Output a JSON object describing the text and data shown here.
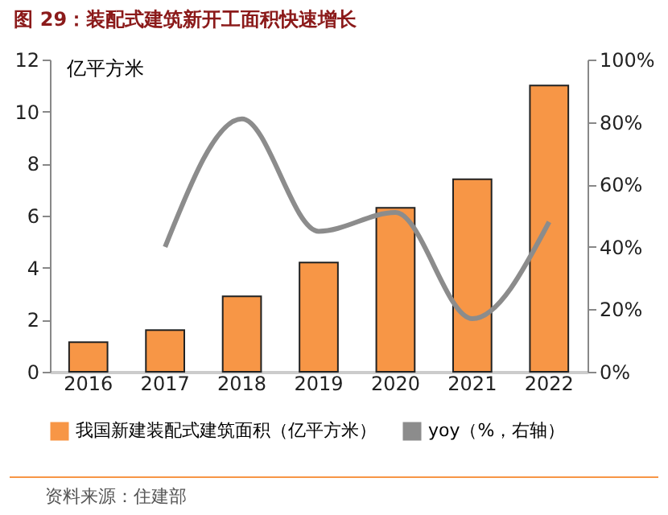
{
  "chart_data": {
    "type": "bar",
    "title": "图 29：装配式建筑新开工面积快速增长",
    "ylabel": "亿平方米",
    "categories": [
      "2016",
      "2017",
      "2018",
      "2019",
      "2020",
      "2021",
      "2022"
    ],
    "series": [
      {
        "name": "我国新建装配式建筑面积（亿平方米）",
        "color": "#f79646",
        "values": [
          1.14,
          1.6,
          2.9,
          4.2,
          6.3,
          7.4,
          11.0
        ]
      },
      {
        "name": "yoy（%，右轴）",
        "type": "line",
        "axis": "y2",
        "color": "#8c8c8c",
        "values": [
          null,
          40,
          81,
          45,
          51,
          17,
          48
        ]
      }
    ],
    "ylim": [
      0,
      12
    ],
    "yticks": [
      0,
      2,
      4,
      6,
      8,
      10,
      12
    ],
    "y2lim": [
      0,
      100
    ],
    "y2ticks": [
      {
        "value": 0,
        "label": "0%"
      },
      {
        "value": 20,
        "label": "20%"
      },
      {
        "value": 40,
        "label": "40%"
      },
      {
        "value": 60,
        "label": "60%"
      },
      {
        "value": 80,
        "label": "80%"
      },
      {
        "value": 100,
        "label": "100%"
      }
    ],
    "legend": "bottom",
    "grid": false,
    "annotations": [
      "资料来源：住建部"
    ]
  }
}
